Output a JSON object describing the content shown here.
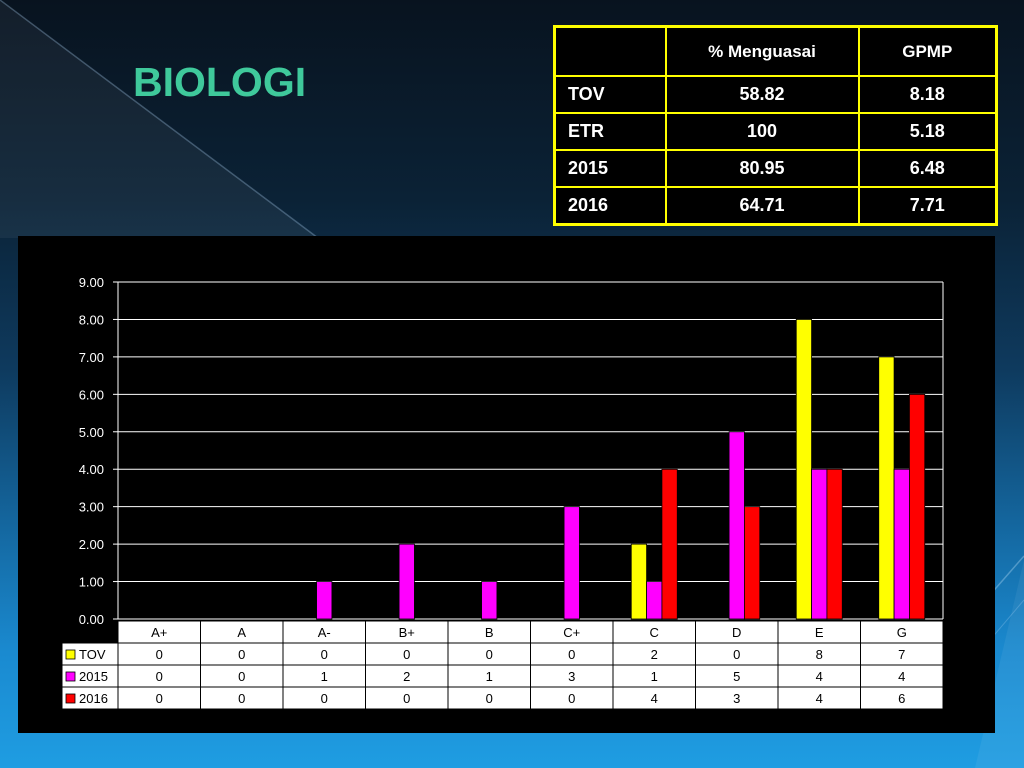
{
  "slide": {
    "title": "BIOLOGI"
  },
  "summary_table": {
    "headers": [
      "% Menguasai",
      "GPMP"
    ],
    "rows": [
      {
        "label": "TOV",
        "menguasai": "58.82",
        "gpmp": "8.18"
      },
      {
        "label": "ETR",
        "menguasai": "100",
        "gpmp": "5.18"
      },
      {
        "label": "2015",
        "menguasai": "80.95",
        "gpmp": "6.48"
      },
      {
        "label": "2016",
        "menguasai": "64.71",
        "gpmp": "7.71"
      }
    ]
  },
  "chart_data": {
    "type": "bar",
    "categories": [
      "A+",
      "A",
      "A-",
      "B+",
      "B",
      "C+",
      "C",
      "D",
      "E",
      "G"
    ],
    "series": [
      {
        "name": "TOV",
        "color": "#ffff00",
        "values": [
          0,
          0,
          0,
          0,
          0,
          0,
          2,
          0,
          8,
          7
        ]
      },
      {
        "name": "2015",
        "color": "#ff00ff",
        "values": [
          0,
          0,
          1,
          2,
          1,
          3,
          1,
          5,
          4,
          4
        ]
      },
      {
        "name": "2016",
        "color": "#ff0000",
        "values": [
          0,
          0,
          0,
          0,
          0,
          0,
          4,
          3,
          4,
          6
        ]
      }
    ],
    "ylim": [
      0,
      9
    ],
    "yticks": [
      0,
      1,
      2,
      3,
      4,
      5,
      6,
      7,
      8,
      9
    ],
    "ytick_labels": [
      "0.00",
      "1.00",
      "2.00",
      "3.00",
      "4.00",
      "5.00",
      "6.00",
      "7.00",
      "8.00",
      "9.00"
    ],
    "grid": true,
    "data_table": true
  }
}
